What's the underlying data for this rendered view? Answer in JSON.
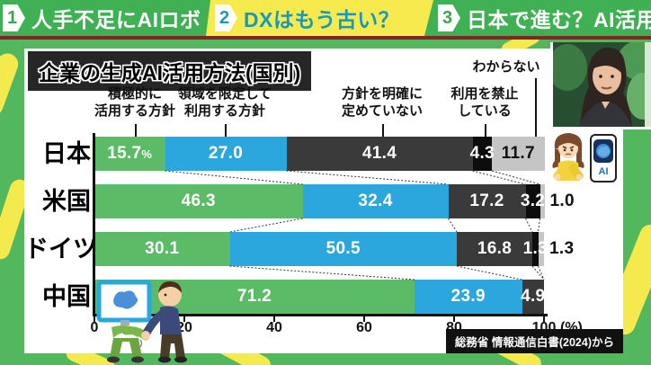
{
  "program_strip": {
    "items": [
      {
        "number": "1",
        "label": "人手不足にAIロボ",
        "active": false
      },
      {
        "number": "2",
        "label": "DXはもう古い？",
        "active": true
      },
      {
        "number": "3",
        "label": "日本で進む？AI活用",
        "active": false
      }
    ]
  },
  "panel": {
    "title": "企業の生成AI活用方法(国別)",
    "source": "総務省 情報通信白書(2024)から"
  },
  "phone": {
    "label": "AI"
  },
  "chart_data": {
    "type": "bar",
    "subtype": "horizontal-stacked",
    "title": "企業の生成AI活用方法(国別)",
    "categories": [
      "日本",
      "米国",
      "ドイツ",
      "中国"
    ],
    "series": [
      {
        "name": "積極的に\n活用する方針",
        "color": "#5cbb66",
        "values": [
          15.7,
          46.3,
          30.1,
          71.2
        ]
      },
      {
        "name": "領域を限定して\n利用する方針",
        "color": "#2ba7de",
        "values": [
          27.0,
          32.4,
          50.5,
          23.9
        ]
      },
      {
        "name": "方針を明確に\n定めていない",
        "color": "#3a3a3a",
        "values": [
          41.4,
          17.2,
          16.8,
          4.9
        ]
      },
      {
        "name": "利用を禁止\nしている",
        "color": "#0d0d0d",
        "values": [
          4.3,
          3.2,
          1.3,
          0
        ]
      },
      {
        "name": "わからない",
        "color": "#c5c5c5",
        "values": [
          11.7,
          1.0,
          1.3,
          0
        ]
      }
    ],
    "value_labels": [
      [
        "15.7%",
        "27.0",
        "41.4",
        "4.3",
        "11.7"
      ],
      [
        "46.3",
        "32.4",
        "17.2",
        "3.2",
        "1.0"
      ],
      [
        "30.1",
        "50.5",
        "16.8",
        "1.3",
        "1.3"
      ],
      [
        "71.2",
        "23.9",
        "4.9",
        "",
        ""
      ]
    ],
    "x_ticks": [
      0,
      20,
      40,
      60,
      80,
      100
    ],
    "x_unit": "(%)",
    "xlim": [
      0,
      100
    ],
    "legend_position": "top",
    "grid": false,
    "source": "総務省 情報通信白書(2024)から"
  }
}
